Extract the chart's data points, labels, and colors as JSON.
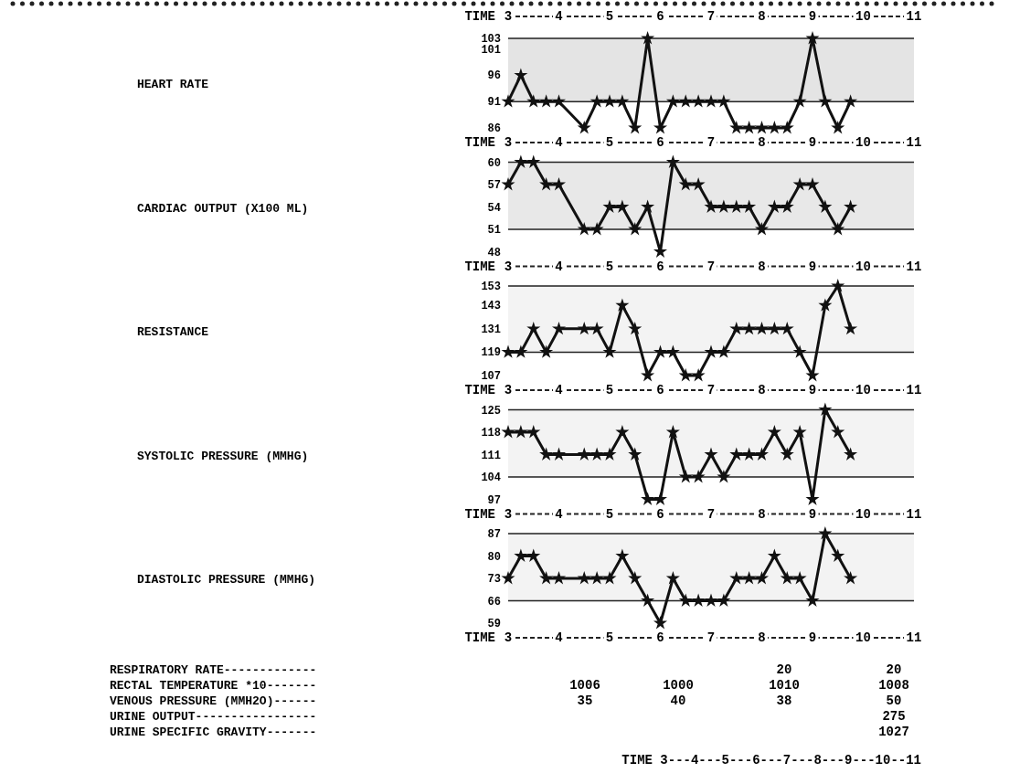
{
  "chart_data": [
    {
      "type": "line",
      "ylabel": "HEART RATE",
      "xlabel": "TIME",
      "x2label": "TIME",
      "xlim": [
        3,
        11
      ],
      "xticks": [
        3,
        4,
        5,
        6,
        7,
        8,
        9,
        10,
        11
      ],
      "x2lim": [
        3,
        11
      ],
      "x2ticks": [
        3,
        4,
        5,
        6,
        7,
        8,
        9,
        10,
        11
      ],
      "ylim": [
        86,
        103
      ],
      "yticks": [
        86,
        91,
        96,
        101,
        103
      ],
      "marker": "star",
      "color": "#111111",
      "x": [
        3,
        3.25,
        3.5,
        3.75,
        4,
        4.5,
        4.75,
        5,
        5.25,
        5.5,
        5.75,
        6,
        6.25,
        6.5,
        6.75,
        7,
        7.25,
        7.5,
        7.75,
        8,
        8.25,
        8.5,
        8.75,
        9,
        9.25,
        9.5,
        9.75
      ],
      "values": [
        91,
        96,
        91,
        91,
        91,
        86,
        91,
        91,
        91,
        86,
        103,
        86,
        91,
        91,
        91,
        91,
        91,
        86,
        86,
        86,
        86,
        86,
        91,
        103,
        91,
        86,
        91
      ],
      "bands": [
        {
          "axis": "y",
          "from": 91,
          "to": 103,
          "color": "#e4e4e4"
        }
      ]
    },
    {
      "type": "line",
      "ylabel": "CARDIAC OUTPUT (X100 ML)",
      "xlabel": "TIME",
      "xlim": [
        3,
        11
      ],
      "xticks": [
        3,
        4,
        5,
        6,
        7,
        8,
        9,
        10,
        11
      ],
      "ylim": [
        48,
        60
      ],
      "yticks": [
        48,
        51,
        54,
        57,
        60
      ],
      "marker": "star",
      "color": "#111111",
      "x": [
        3,
        3.25,
        3.5,
        3.75,
        4,
        4.5,
        4.75,
        5,
        5.25,
        5.5,
        5.75,
        6,
        6.25,
        6.5,
        6.75,
        7,
        7.25,
        7.5,
        7.75,
        8,
        8.25,
        8.5,
        8.75,
        9,
        9.25,
        9.5,
        9.75
      ],
      "values": [
        57,
        60,
        60,
        57,
        57,
        51,
        51,
        54,
        54,
        51,
        54,
        48,
        60,
        57,
        57,
        54,
        54,
        54,
        54,
        51,
        54,
        54,
        57,
        57,
        54,
        51,
        54
      ],
      "bands": [
        {
          "axis": "y",
          "from": 51,
          "to": 60,
          "color": "#e8e8e8"
        }
      ]
    },
    {
      "type": "line",
      "ylabel": "RESISTANCE",
      "xlabel": "TIME",
      "xlim": [
        3,
        11
      ],
      "xticks": [
        3,
        4,
        5,
        6,
        7,
        8,
        9,
        10,
        11
      ],
      "ylim": [
        107,
        153
      ],
      "yticks": [
        107,
        119,
        131,
        143,
        153
      ],
      "marker": "star",
      "color": "#111111",
      "x": [
        3,
        3.25,
        3.5,
        3.75,
        4,
        4.5,
        4.75,
        5,
        5.25,
        5.5,
        5.75,
        6,
        6.25,
        6.5,
        6.75,
        7,
        7.25,
        7.5,
        7.75,
        8,
        8.25,
        8.5,
        8.75,
        9,
        9.25,
        9.5,
        9.75
      ],
      "values": [
        119,
        119,
        131,
        119,
        131,
        131,
        131,
        119,
        143,
        131,
        107,
        119,
        119,
        107,
        107,
        119,
        119,
        131,
        131,
        131,
        131,
        131,
        119,
        107,
        143,
        153,
        131
      ],
      "bands": [
        {
          "axis": "y",
          "from": 119,
          "to": 153,
          "color": "#f3f3f3"
        }
      ]
    },
    {
      "type": "line",
      "ylabel": "SYSTOLIC PRESSURE (MMHG)",
      "xlabel": "TIME",
      "xlim": [
        3,
        11
      ],
      "xticks": [
        3,
        4,
        5,
        6,
        7,
        8,
        9,
        10,
        11
      ],
      "ylim": [
        97,
        125
      ],
      "yticks": [
        97,
        104,
        111,
        118,
        125
      ],
      "marker": "star",
      "color": "#111111",
      "x": [
        3,
        3.25,
        3.5,
        3.75,
        4,
        4.5,
        4.75,
        5,
        5.25,
        5.5,
        5.75,
        6,
        6.25,
        6.5,
        6.75,
        7,
        7.25,
        7.5,
        7.75,
        8,
        8.25,
        8.5,
        8.75,
        9,
        9.25,
        9.5,
        9.75
      ],
      "values": [
        118,
        118,
        118,
        111,
        111,
        111,
        111,
        111,
        118,
        111,
        97,
        97,
        118,
        104,
        104,
        111,
        104,
        111,
        111,
        111,
        118,
        111,
        118,
        97,
        125,
        118,
        111
      ],
      "bands": [
        {
          "axis": "y",
          "from": 104,
          "to": 125,
          "color": "#f3f3f3"
        }
      ]
    },
    {
      "type": "line",
      "ylabel": "DIASTOLIC PRESSURE (MMHG)",
      "xlabel": "TIME",
      "xlim": [
        3,
        11
      ],
      "xticks": [
        3,
        4,
        5,
        6,
        7,
        8,
        9,
        10,
        11
      ],
      "ylim": [
        59,
        87
      ],
      "yticks": [
        59,
        66,
        73,
        80,
        87
      ],
      "marker": "star",
      "color": "#111111",
      "x": [
        3,
        3.25,
        3.5,
        3.75,
        4,
        4.5,
        4.75,
        5,
        5.25,
        5.5,
        5.75,
        6,
        6.25,
        6.5,
        6.75,
        7,
        7.25,
        7.5,
        7.75,
        8,
        8.25,
        8.5,
        8.75,
        9,
        9.25,
        9.5,
        9.75
      ],
      "values": [
        73,
        80,
        80,
        73,
        73,
        73,
        73,
        73,
        80,
        73,
        66,
        59,
        73,
        66,
        66,
        66,
        66,
        73,
        73,
        73,
        80,
        73,
        73,
        66,
        87,
        80,
        73
      ],
      "bands": [
        {
          "axis": "y",
          "from": 66,
          "to": 87,
          "color": "#f3f3f3"
        }
      ]
    },
    {
      "type": "other",
      "y_categories": [
        "RESPIRATORY RATE-------------",
        "RECTAL TEMPERATURE *10-------",
        "VENOUS PRESSURE (MMH2O)------",
        "URINE OUTPUT-----------------",
        "URINE SPECIFIC GRAVITY-------"
      ],
      "annotations": [
        "20",
        "20",
        "1006",
        "1000",
        "1010",
        "1008",
        "35",
        "40",
        "38",
        "50",
        "275",
        "1027",
        "TIME 3---4---5---6---7---8---9---10--11"
      ]
    }
  ]
}
